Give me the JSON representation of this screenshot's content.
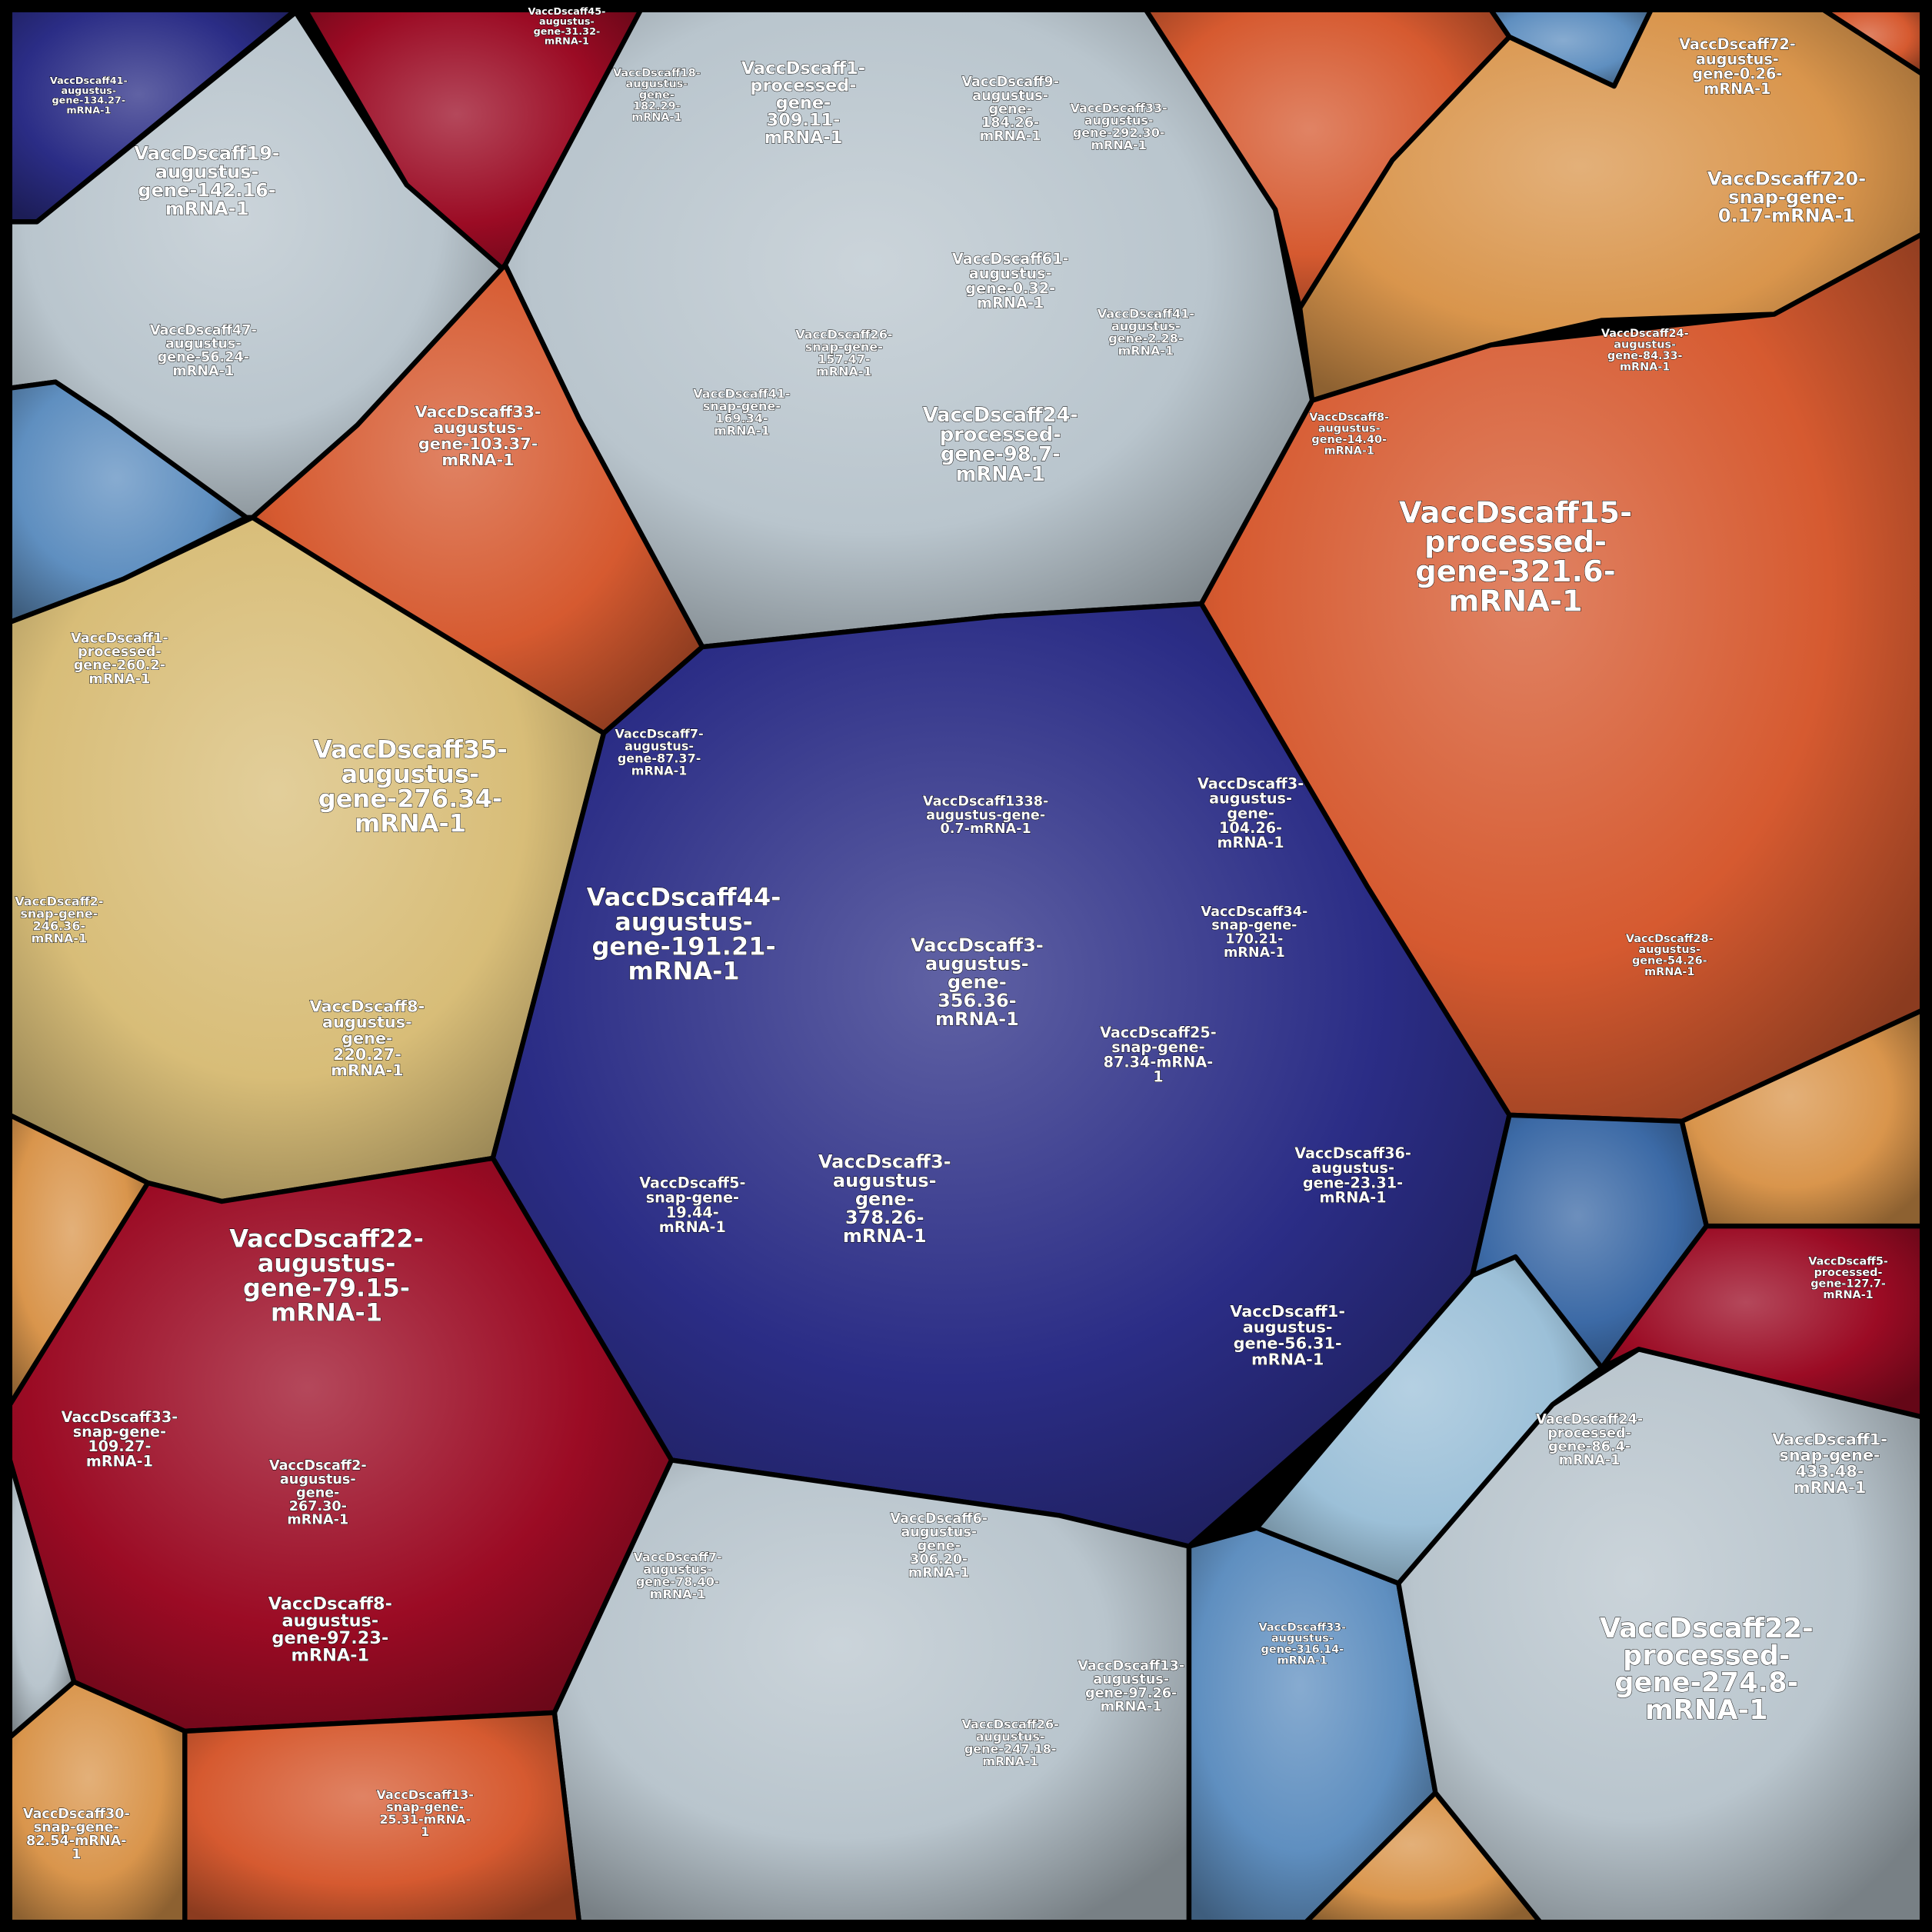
{
  "palette": {
    "navy": "#2b2d86",
    "grey": "#b9c5cd",
    "crimson": "#9b0b24",
    "orange_red": "#d65a30",
    "light_orange": "#d9954c",
    "tan": "#d8bd78",
    "steel_blue": "#5f8fc0",
    "pale_blue": "#9cc0d8",
    "blue": "#3c6aa6",
    "border": "#000000"
  },
  "labels": [
    "VaccDscaff41-\naugustus-\ngene-134.27-\nmRNA-1",
    "VaccDscaff19-\naugustus-\ngene-142.16-\nmRNA-1",
    "VaccDscaff47-\naugustus-\ngene-56.24-\nmRNA-1",
    "VaccDscaff45-\naugustus-\ngene-31.32-\nmRNA-1",
    "VaccDscaff18-\naugustus-\ngene-\n182.29-\nmRNA-1",
    "VaccDscaff1-\nprocessed-\ngene-\n309.11-\nmRNA-1",
    "VaccDscaff9-\naugustus-\ngene-\n184.26-\nmRNA-1",
    "VaccDscaff33-\naugustus-\ngene-292.30-\nmRNA-1",
    "VaccDscaff61-\naugustus-\ngene-0.32-\nmRNA-1",
    "VaccDscaff24-\nprocessed-\ngene-98.7-\nmRNA-1",
    "VaccDscaff26-\nsnap-gene-\n157.47-\nmRNA-1",
    "VaccDscaff41-\nsnap-gene-\n169.34-\nmRNA-1",
    "VaccDscaff41-\naugustus-\ngene-2.28-\nmRNA-1",
    "VaccDscaff33-\naugustus-\ngene-103.37-\nmRNA-1",
    "VaccDscaff72-\naugustus-\ngene-0.26-\nmRNA-1",
    "VaccDscaff720-\nsnap-gene-\n0.17-mRNA-1",
    "VaccDscaff15-\nprocessed-\ngene-321.6-\nmRNA-1",
    "VaccDscaff8-\naugustus-\ngene-14.40-\nmRNA-1",
    "VaccDscaff24-\naugustus-\ngene-84.33-\nmRNA-1",
    "VaccDscaff1-\nprocessed-\ngene-260.2-\nmRNA-1",
    "VaccDscaff35-\naugustus-\ngene-276.34-\nmRNA-1",
    "VaccDscaff2-\nsnap-gene-\n246.36-\nmRNA-1",
    "VaccDscaff8-\naugustus-\ngene-\n220.27-\nmRNA-1",
    "VaccDscaff44-\naugustus-\ngene-191.21-\nmRNA-1",
    "VaccDscaff3-\naugustus-\ngene-\n356.36-\nmRNA-1",
    "VaccDscaff3-\naugustus-\ngene-\n378.26-\nmRNA-1",
    "VaccDscaff1338-\naugustus-gene-\n0.7-mRNA-1",
    "VaccDscaff3-\naugustus-\ngene-\n104.26-\nmRNA-1",
    "VaccDscaff34-\nsnap-gene-\n170.21-\nmRNA-1",
    "VaccDscaff25-\nsnap-gene-\n87.34-mRNA-\n1",
    "VaccDscaff36-\naugustus-\ngene-23.31-\nmRNA-1",
    "VaccDscaff1-\naugustus-\ngene-56.31-\nmRNA-1",
    "VaccDscaff5-\nsnap-gene-\n19.44-\nmRNA-1",
    "VaccDscaff7-\naugustus-\ngene-87.37-\nmRNA-1",
    "VaccDscaff22-\naugustus-\ngene-79.15-\nmRNA-1",
    "VaccDscaff33-\nsnap-gene-\n109.27-\nmRNA-1",
    "VaccDscaff2-\naugustus-\ngene-\n267.30-\nmRNA-1",
    "VaccDscaff8-\naugustus-\ngene-97.23-\nmRNA-1",
    "VaccDscaff22-\nprocessed-\ngene-274.8-\nmRNA-1",
    "VaccDscaff1-\nsnap-gene-\n433.48-\nmRNA-1",
    "VaccDscaff24-\nprocessed-\ngene-86.4-\nmRNA-1",
    "VaccDscaff30-\nsnap-gene-\n82.54-mRNA-\n1",
    "VaccDscaff13-\nsnap-gene-\n25.31-mRNA-\n1",
    "VaccDscaff6-\naugustus-\ngene-\n306.20-\nmRNA-1",
    "VaccDscaff7-\naugustus-\ngene-78.40-\nmRNA-1",
    "VaccDscaff13-\naugustus-\ngene-97.26-\nmRNA-1",
    "VaccDscaff26-\naugustus-\ngene-247.18-\nmRNA-1",
    "VaccDscaff33-\naugustus-\ngene-316.14-\nmRNA-1",
    "VaccDscaff28-\naugustus-\ngene-54.26-\nmRNA-1",
    "VaccDscaff5-\nprocessed-\ngene-127.7-\nmRNA-1"
  ]
}
